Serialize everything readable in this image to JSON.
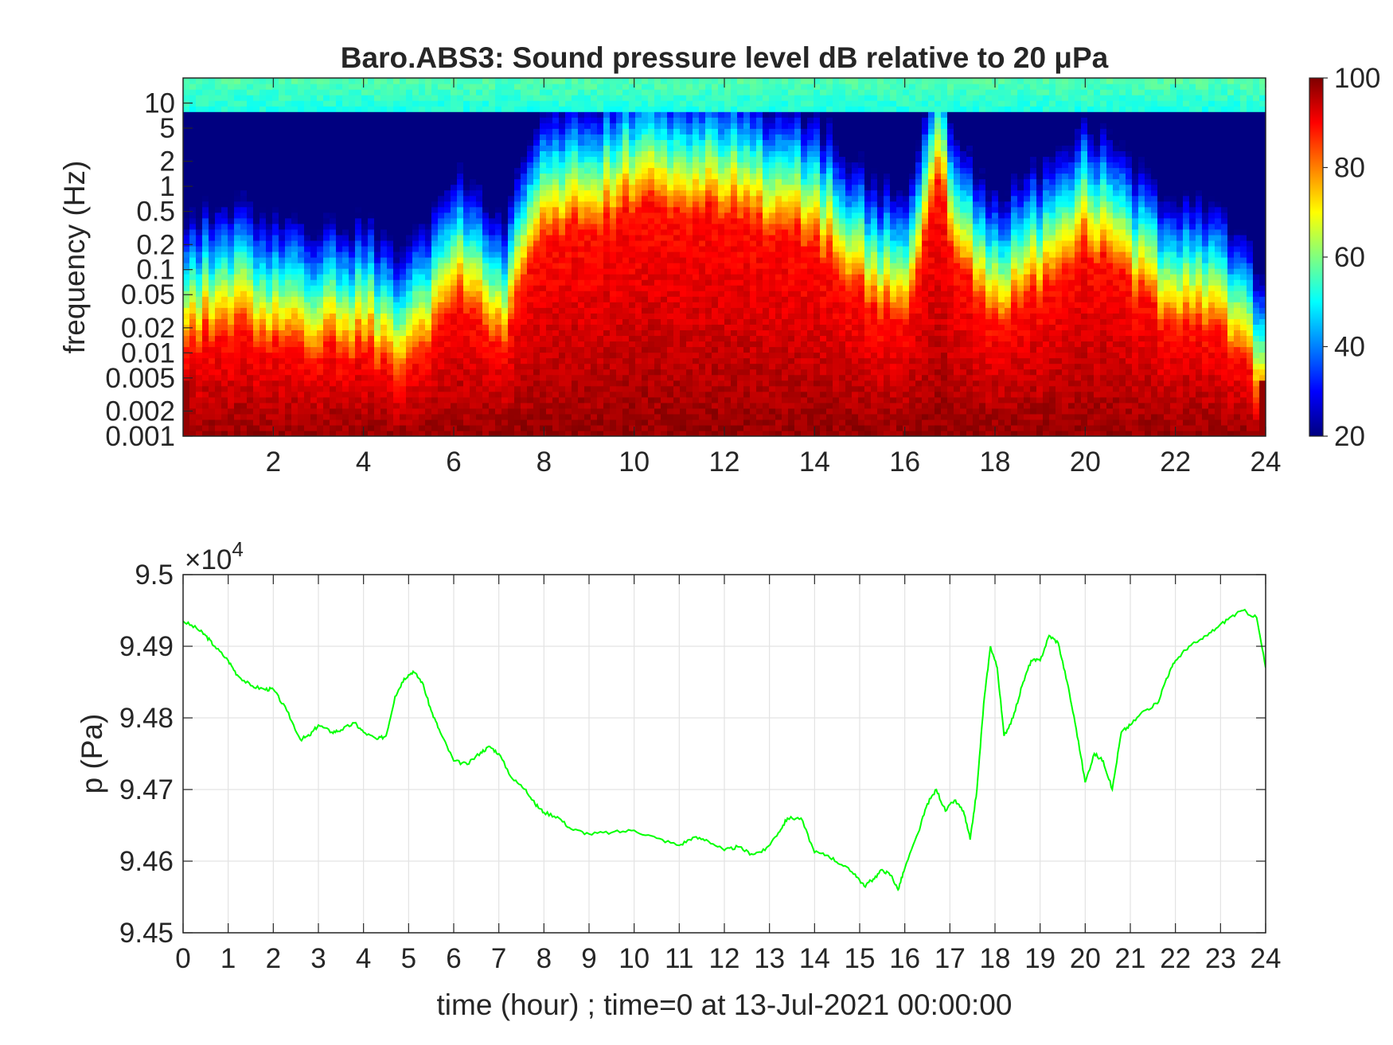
{
  "chart_data": [
    {
      "type": "heatmap",
      "title": "Baro.ABS3: Sound pressure level dB relative to 20 μPa",
      "xlabel": "",
      "ylabel": "frequency (Hz)",
      "x_ticks": [
        "2",
        "4",
        "6",
        "8",
        "10",
        "12",
        "14",
        "16",
        "18",
        "20",
        "22",
        "24"
      ],
      "y_ticks": [
        "0.001",
        "0.002",
        "0.005",
        "0.01",
        "0.02",
        "0.05",
        "0.1",
        "0.2",
        "0.5",
        "1",
        "2",
        "5",
        "10"
      ],
      "xlim": [
        0,
        24
      ],
      "ylim": [
        0.001,
        20
      ],
      "y_scale": "log",
      "colormap": "jet",
      "colorbar": {
        "range": [
          20,
          100
        ],
        "ticks": [
          "20",
          "40",
          "60",
          "80",
          "100"
        ]
      },
      "intensity_profile": {
        "time_hour": [
          0,
          1,
          2,
          3,
          4,
          5,
          6,
          7,
          8,
          9,
          10,
          11,
          12,
          13,
          14,
          15,
          16,
          16.8,
          17,
          18,
          19,
          20,
          21,
          22,
          23,
          24
        ],
        "peak_frequency_hz": [
          0.01,
          0.02,
          0.01,
          0.01,
          0.01,
          0.005,
          0.05,
          0.01,
          0.2,
          0.3,
          0.5,
          0.5,
          0.5,
          0.3,
          0.2,
          0.05,
          0.02,
          2,
          0.2,
          0.02,
          0.05,
          0.2,
          0.05,
          0.02,
          0.02,
          0.002
        ]
      }
    },
    {
      "type": "line",
      "title": "",
      "xlabel": "time (hour) ; time=0 at 13-Jul-2021 00:00:00",
      "ylabel": "p (Pa)",
      "exponent_label": "×10",
      "exponent_power": "4",
      "x_ticks": [
        "0",
        "1",
        "2",
        "3",
        "4",
        "5",
        "6",
        "7",
        "8",
        "9",
        "10",
        "11",
        "12",
        "13",
        "14",
        "15",
        "16",
        "17",
        "18",
        "19",
        "20",
        "21",
        "22",
        "23",
        "24"
      ],
      "y_ticks": [
        "9.45",
        "9.46",
        "9.47",
        "9.48",
        "9.49",
        "9.5"
      ],
      "xlim": [
        0,
        24
      ],
      "ylim": [
        94500,
        95000
      ],
      "grid": true,
      "line_color": "#00ff00",
      "series": [
        {
          "x": [
            0,
            0.3,
            0.5,
            0.7,
            1.0,
            1.2,
            1.5,
            1.8,
            2.0,
            2.3,
            2.6,
            2.8,
            3.0,
            3.3,
            3.5,
            3.8,
            4.0,
            4.3,
            4.5,
            4.7,
            4.9,
            5.1,
            5.3,
            5.5,
            5.7,
            6.0,
            6.3,
            6.6,
            6.8,
            7.0,
            7.3,
            7.6,
            7.8,
            8.0,
            8.3,
            8.6,
            9.0,
            9.5,
            10.0,
            10.5,
            11.0,
            11.3,
            11.6,
            12.0,
            12.3,
            12.6,
            12.9,
            13.2,
            13.4,
            13.7,
            14.0,
            14.3,
            14.6,
            14.9,
            15.1,
            15.3,
            15.5,
            15.7,
            15.85,
            16.0,
            16.3,
            16.5,
            16.7,
            16.9,
            17.1,
            17.3,
            17.45,
            17.6,
            17.75,
            17.9,
            18.05,
            18.2,
            18.4,
            18.6,
            18.8,
            19.0,
            19.2,
            19.4,
            19.6,
            19.8,
            20.0,
            20.2,
            20.4,
            20.6,
            20.8,
            21.0,
            21.3,
            21.6,
            21.8,
            22.0,
            22.3,
            22.6,
            22.9,
            23.2,
            23.5,
            23.8,
            24.0
          ],
          "y": [
            94935,
            94925,
            94915,
            94900,
            94880,
            94860,
            94845,
            94840,
            94840,
            94810,
            94770,
            94775,
            94790,
            94780,
            94783,
            94793,
            94780,
            94770,
            94775,
            94830,
            94855,
            94865,
            94850,
            94810,
            94780,
            94740,
            94735,
            94752,
            94760,
            94750,
            94715,
            94700,
            94680,
            94668,
            94662,
            94645,
            94638,
            94640,
            94643,
            94632,
            94622,
            94633,
            94630,
            94615,
            94620,
            94610,
            94615,
            94640,
            94660,
            94660,
            94612,
            94608,
            94595,
            94582,
            94565,
            94575,
            94588,
            94580,
            94560,
            94590,
            94640,
            94680,
            94700,
            94670,
            94685,
            94670,
            94630,
            94700,
            94820,
            94900,
            94870,
            94775,
            94800,
            94845,
            94880,
            94880,
            94915,
            94905,
            94850,
            94785,
            94710,
            94750,
            94740,
            94700,
            94780,
            94790,
            94810,
            94820,
            94855,
            94880,
            94900,
            94910,
            94925,
            94940,
            94950,
            94940,
            94870
          ]
        }
      ]
    }
  ]
}
